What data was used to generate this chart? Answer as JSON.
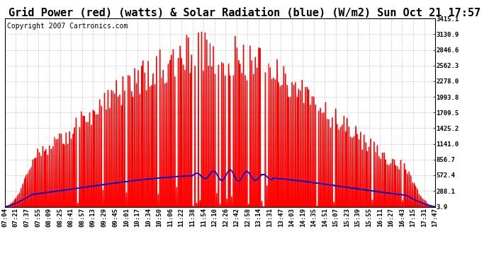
{
  "title": "Grid Power (red) (watts) & Solar Radiation (blue) (W/m2) Sun Oct 21 17:57",
  "copyright": "Copyright 2007 Cartronics.com",
  "background_color": "#ffffff",
  "plot_bg_color": "#ffffff",
  "grid_color": "#aaaaaa",
  "yticks": [
    3.9,
    288.1,
    572.4,
    856.7,
    1141.0,
    1425.2,
    1709.5,
    1993.8,
    2278.0,
    2562.3,
    2846.6,
    3130.9,
    3415.1
  ],
  "ymin": 0,
  "ymax": 3415.1,
  "x_labels": [
    "07:04",
    "07:21",
    "07:37",
    "07:55",
    "08:09",
    "08:25",
    "08:41",
    "08:57",
    "09:13",
    "09:29",
    "09:45",
    "10:01",
    "10:17",
    "10:34",
    "10:50",
    "11:06",
    "11:22",
    "11:38",
    "11:54",
    "12:10",
    "12:26",
    "12:42",
    "12:58",
    "13:14",
    "13:31",
    "13:47",
    "14:03",
    "14:19",
    "14:35",
    "14:51",
    "15:07",
    "15:23",
    "15:39",
    "15:55",
    "16:11",
    "16:27",
    "16:43",
    "17:15",
    "17:31",
    "17:47"
  ],
  "title_fontsize": 11,
  "copyright_fontsize": 7,
  "tick_fontsize": 6.5,
  "red_fill_color": "#ff0000",
  "blue_line_color": "#0000cc"
}
